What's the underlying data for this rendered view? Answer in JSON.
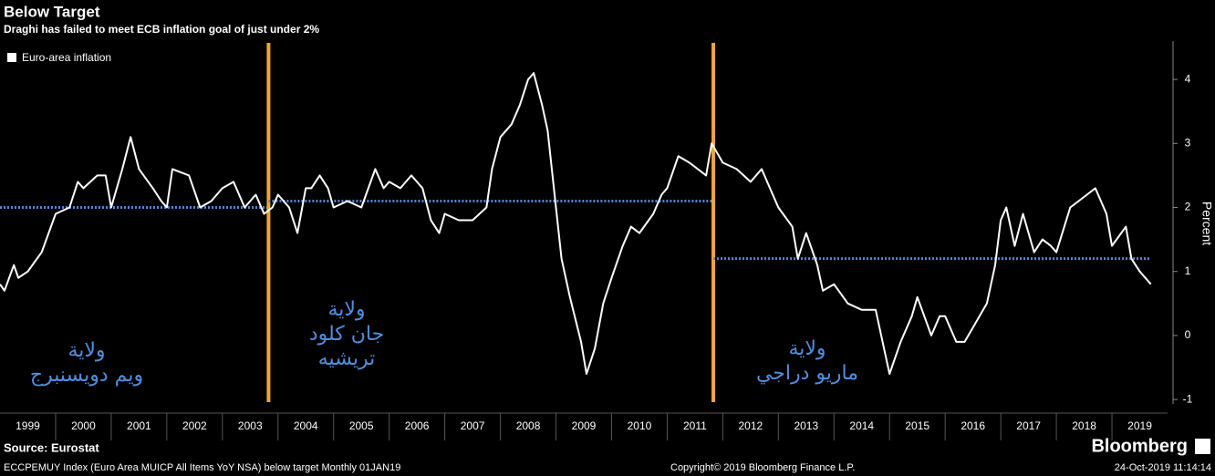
{
  "title": "Below Target",
  "subtitle": "Draghi has failed to meet ECB inflation goal of just under 2%",
  "source": "Source: Eurostat",
  "footer": {
    "index": "ECCPEMUY Index (Euro Area MUICP All Items YoY NSA) below target  Monthly 01JAN19",
    "copyright": "Copyright© 2019 Bloomberg Finance L.P.",
    "timestamp": "24-Oct-2019 11:14:14",
    "brand": "Bloomberg"
  },
  "chart_data": {
    "type": "line",
    "ylabel": "Percent",
    "xlim": [
      1999,
      2020
    ],
    "ylim": [
      -1.07,
      4.6
    ],
    "yticks": [
      -1,
      0,
      1,
      2,
      3,
      4
    ],
    "xticks": [
      {
        "value": 1999.5,
        "label": "1999"
      },
      {
        "value": 2000.5,
        "label": "2000"
      },
      {
        "value": 2001.5,
        "label": "2001"
      },
      {
        "value": 2002.5,
        "label": "2002"
      },
      {
        "value": 2003.5,
        "label": "2003"
      },
      {
        "value": 2004.5,
        "label": "2004"
      },
      {
        "value": 2005.5,
        "label": "2005"
      },
      {
        "value": 2006.5,
        "label": "2006"
      },
      {
        "value": 2007.5,
        "label": "2007"
      },
      {
        "value": 2008.5,
        "label": "2008"
      },
      {
        "value": 2009.5,
        "label": "2009"
      },
      {
        "value": 2010.5,
        "label": "2010"
      },
      {
        "value": 2011.5,
        "label": "2011"
      },
      {
        "value": 2012.5,
        "label": "2012"
      },
      {
        "value": 2013.5,
        "label": "2013"
      },
      {
        "value": 2014.5,
        "label": "2014"
      },
      {
        "value": 2015.5,
        "label": "2015"
      },
      {
        "value": 2016.5,
        "label": "2016"
      },
      {
        "value": 2017.5,
        "label": "2017"
      },
      {
        "value": 2018.5,
        "label": "2018"
      },
      {
        "value": 2019.5,
        "label": "2019"
      }
    ],
    "series": [
      {
        "name": "Euro-area inflation",
        "color": "#ffffff",
        "x": [
          1999.0,
          1999.08,
          1999.25,
          1999.33,
          1999.5,
          1999.75,
          2000.0,
          2000.25,
          2000.4,
          2000.5,
          2000.75,
          2000.9,
          2001.0,
          2001.2,
          2001.35,
          2001.5,
          2001.75,
          2001.9,
          2002.0,
          2002.1,
          2002.4,
          2002.6,
          2002.8,
          2003.0,
          2003.2,
          2003.4,
          2003.6,
          2003.75,
          2003.9,
          2004.0,
          2004.2,
          2004.35,
          2004.5,
          2004.6,
          2004.75,
          2004.9,
          2005.0,
          2005.25,
          2005.5,
          2005.75,
          2005.9,
          2006.0,
          2006.2,
          2006.4,
          2006.6,
          2006.75,
          2006.9,
          2007.0,
          2007.25,
          2007.5,
          2007.75,
          2007.85,
          2008.0,
          2008.2,
          2008.35,
          2008.5,
          2008.6,
          2008.75,
          2008.85,
          2009.0,
          2009.1,
          2009.25,
          2009.45,
          2009.55,
          2009.7,
          2009.85,
          2010.0,
          2010.2,
          2010.35,
          2010.5,
          2010.75,
          2010.9,
          2011.0,
          2011.2,
          2011.4,
          2011.7,
          2011.8,
          2012.0,
          2012.25,
          2012.5,
          2012.7,
          2012.9,
          2013.0,
          2013.25,
          2013.35,
          2013.5,
          2013.7,
          2013.8,
          2014.0,
          2014.25,
          2014.5,
          2014.75,
          2014.9,
          2015.0,
          2015.2,
          2015.4,
          2015.5,
          2015.75,
          2015.9,
          2016.0,
          2016.2,
          2016.35,
          2016.55,
          2016.75,
          2016.9,
          2017.0,
          2017.1,
          2017.25,
          2017.4,
          2017.6,
          2017.75,
          2017.9,
          2018.0,
          2018.25,
          2018.4,
          2018.55,
          2018.7,
          2018.9,
          2019.0,
          2019.25,
          2019.35,
          2019.5,
          2019.7
        ],
        "values": [
          0.8,
          0.7,
          1.1,
          0.9,
          1.0,
          1.3,
          1.9,
          2.0,
          2.4,
          2.3,
          2.5,
          2.5,
          2.0,
          2.6,
          3.1,
          2.6,
          2.3,
          2.1,
          2.0,
          2.6,
          2.5,
          2.0,
          2.1,
          2.3,
          2.4,
          2.0,
          2.2,
          1.9,
          2.0,
          2.2,
          2.0,
          1.6,
          2.3,
          2.3,
          2.5,
          2.3,
          2.0,
          2.1,
          2.0,
          2.6,
          2.3,
          2.4,
          2.3,
          2.5,
          2.3,
          1.8,
          1.6,
          1.9,
          1.8,
          1.8,
          2.0,
          2.6,
          3.1,
          3.3,
          3.6,
          4.0,
          4.1,
          3.6,
          3.2,
          2.0,
          1.2,
          0.6,
          -0.1,
          -0.6,
          -0.2,
          0.5,
          0.9,
          1.4,
          1.7,
          1.6,
          1.9,
          2.2,
          2.3,
          2.8,
          2.7,
          2.5,
          3.0,
          2.7,
          2.6,
          2.4,
          2.6,
          2.2,
          2.0,
          1.7,
          1.2,
          1.6,
          1.1,
          0.7,
          0.8,
          0.5,
          0.4,
          0.4,
          -0.2,
          -0.6,
          -0.1,
          0.3,
          0.6,
          0.0,
          0.3,
          0.3,
          -0.1,
          -0.1,
          0.2,
          0.5,
          1.1,
          1.8,
          2.0,
          1.4,
          1.9,
          1.3,
          1.5,
          1.4,
          1.3,
          2.0,
          2.1,
          2.2,
          2.3,
          1.9,
          1.4,
          1.7,
          1.2,
          1.0,
          0.8
        ]
      }
    ],
    "terms": [
      {
        "start": 2003.83,
        "value": 2.0,
        "label": [
          "ولاية",
          "ويم دويسنبرج"
        ]
      },
      {
        "start": 2011.83,
        "value": 2.1,
        "label": [
          "ولاية",
          "جان كلود",
          "تريشيه"
        ]
      },
      {
        "start": 2019.7,
        "value": 1.2,
        "label": [
          "ولاية",
          "ماريو دراجي"
        ]
      }
    ],
    "term_colors": {
      "divider": "#f5a623",
      "average": "#4f86d9"
    }
  }
}
